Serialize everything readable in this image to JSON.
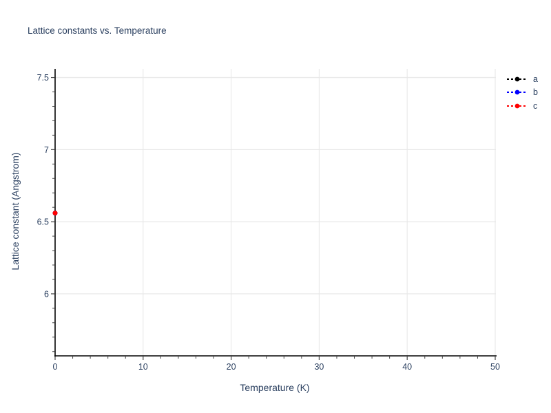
{
  "chart_data": {
    "type": "scatter",
    "title": "Lattice constants vs. Temperature",
    "xlabel": "Temperature (K)",
    "ylabel": "Lattice constant (Angstrom)",
    "xlim": [
      0,
      50
    ],
    "ylim": [
      5.57,
      7.56
    ],
    "x_major_ticks": [
      0,
      10,
      20,
      30,
      40,
      50
    ],
    "x_minor_step": 2,
    "y_major_ticks": [
      6,
      6.5,
      7,
      7.5
    ],
    "y_minor_step": 0.1,
    "grid": true,
    "legend_position": "top-right-outside",
    "series": [
      {
        "name": "a",
        "color": "#000000",
        "marker": "circle",
        "line_style": "dashed",
        "x": [
          0
        ],
        "y": [
          6.56
        ]
      },
      {
        "name": "b",
        "color": "#0000ff",
        "marker": "circle",
        "line_style": "dashed",
        "x": [
          0
        ],
        "y": [
          6.56
        ]
      },
      {
        "name": "c",
        "color": "#ff0000",
        "marker": "circle",
        "line_style": "dashed",
        "x": [
          0
        ],
        "y": [
          6.56
        ]
      }
    ],
    "colors": {
      "text": "#2a3f5f",
      "grid": "#e8e8e8",
      "axis": "#000000",
      "tick": "#444444",
      "background": "#ffffff"
    }
  }
}
